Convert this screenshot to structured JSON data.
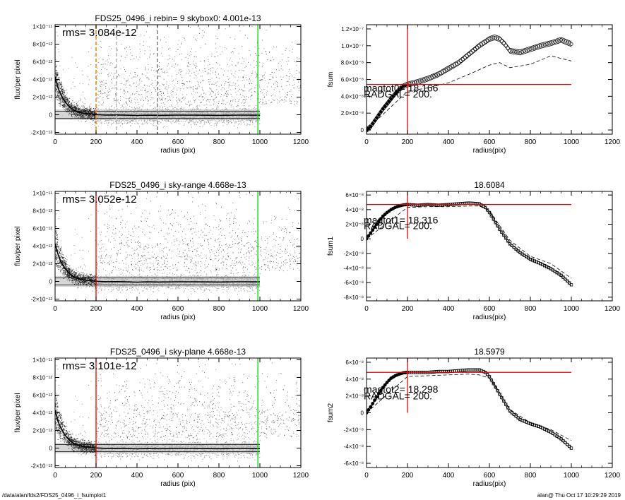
{
  "footer": {
    "path": "/data/alan/fds2/FDS25_0496_i_fsumplot1",
    "stamp": "alan@  Thu Oct 17 10:29:29 2019"
  },
  "chart_data": [
    {
      "type": "scatter",
      "title": "FDS25_0496_i rebin= 9    skybox0:  4.001e-13",
      "annotation": "rms= 3.084e-12",
      "xlabel": "radius (pix)",
      "ylabel": "flux/per pixel",
      "xlim": [
        0,
        1200
      ],
      "ylim": [
        -2.2e-12,
        1.02e-11
      ],
      "xticks": [
        0,
        200,
        400,
        600,
        800,
        1000,
        1200
      ],
      "xtick_labels": [
        "0",
        "200",
        "400",
        "600",
        "800",
        "1000",
        "1200"
      ],
      "yticks": [
        -2e-12,
        0,
        2e-12,
        4e-12,
        6e-12,
        8e-12,
        1e-11
      ],
      "ytick_labels": [
        "-2×10⁻¹²",
        "0",
        "2×10⁻¹²",
        "4×10⁻¹²",
        "6×10⁻¹²",
        "8×10⁻¹²",
        "1×10⁻¹¹"
      ],
      "vlines": [
        {
          "x": 200,
          "color": "#ff8c00",
          "style": "dashed"
        },
        {
          "x": 300,
          "color": "#bbbbbb",
          "style": "dashed"
        },
        {
          "x": 500,
          "color": "#888888",
          "style": "dashed"
        },
        {
          "x": 990,
          "color": "#00dd00",
          "style": "solid"
        }
      ],
      "hlines": [
        {
          "y": 4e-13
        },
        {
          "y": -4e-13
        }
      ],
      "profile": {
        "x": [
          0,
          10,
          20,
          30,
          40,
          50,
          60,
          70,
          80,
          90,
          100,
          120,
          140,
          160,
          180,
          200,
          250,
          300,
          350,
          400,
          450,
          500,
          600,
          700,
          800,
          900,
          1000
        ],
        "y": [
          4.3e-12,
          3.4e-12,
          2.7e-12,
          2.2e-12,
          1.8e-12,
          1.45e-12,
          1.15e-12,
          9e-13,
          7e-13,
          5.5e-13,
          4.3e-13,
          2.8e-13,
          1.8e-13,
          1.2e-13,
          8e-14,
          2e-14,
          -3e-14,
          -2e-14,
          -5e-14,
          -8e-14,
          -5e-14,
          -6e-14,
          -4e-14,
          -5e-14,
          -6e-14,
          -4e-14,
          -5e-14
        ]
      }
    },
    {
      "type": "scatter",
      "title": "",
      "annotation": "",
      "xlabel": "radius(pix)",
      "ylabel": "fsum",
      "xlim": [
        0,
        1200
      ],
      "ylim": [
        -5e-09,
        1.25e-07
      ],
      "xticks": [
        0,
        200,
        400,
        600,
        800,
        1000,
        1200
      ],
      "xtick_labels": [
        "0",
        "200",
        "400",
        "600",
        "800",
        "1000",
        "1200"
      ],
      "yticks": [
        0,
        2e-08,
        4e-08,
        6e-08,
        8e-08,
        1e-07,
        1.2e-07
      ],
      "ytick_labels": [
        "0",
        "2.0×10⁻⁸",
        "4.0×10⁻⁸",
        "6.0×10⁻⁸",
        "8.0×10⁻⁸",
        "1.0×10⁻⁷",
        "1.2×10⁻⁷"
      ],
      "crosshair": {
        "x": 200,
        "y": 5.4e-08,
        "color": "#ee0000"
      },
      "texts": [
        "magtot0=  18.166",
        "RADGAL=     200."
      ],
      "text_pos": [
        5e-08,
        4.3e-08
      ],
      "curve": {
        "x": [
          0,
          20,
          40,
          60,
          80,
          100,
          120,
          140,
          160,
          180,
          200,
          250,
          300,
          350,
          400,
          450,
          500,
          550,
          600,
          625,
          650,
          675,
          700,
          750,
          800,
          850,
          900,
          950,
          1000
        ],
        "y": [
          0,
          4e-09,
          1.1e-08,
          1.8e-08,
          2.5e-08,
          3.1e-08,
          3.7e-08,
          4.3e-08,
          4.8e-08,
          5.2e-08,
          5.4e-08,
          5.7e-08,
          6.1e-08,
          6.6e-08,
          7.3e-08,
          8e-08,
          9e-08,
          1e-07,
          1.08e-07,
          1.1e-07,
          1.08e-07,
          1.02e-07,
          9.4e-08,
          9.2e-08,
          9.6e-08,
          1e-07,
          1.03e-07,
          1.07e-07,
          1.02e-07
        ]
      },
      "band_upper_offset": 3e-09,
      "band_lower_offset": -3e-09,
      "dashed": {
        "x": [
          0,
          200,
          300,
          400,
          500,
          600,
          650,
          700,
          800,
          900,
          1000
        ],
        "y": [
          0,
          4.6e-08,
          5e-08,
          5.6e-08,
          6.6e-08,
          7.7e-08,
          8e-08,
          7.4e-08,
          7.8e-08,
          8.8e-08,
          8.2e-08
        ]
      }
    },
    {
      "type": "scatter",
      "title": "FDS25_0496_i sky-range  4.668e-13",
      "annotation": "rms= 3.052e-12",
      "xlabel": "radius (pix)",
      "ylabel": "flux/per pixel",
      "xlim": [
        0,
        1200
      ],
      "ylim": [
        -2.2e-12,
        1.02e-11
      ],
      "xticks": [
        0,
        200,
        400,
        600,
        800,
        1000,
        1200
      ],
      "xtick_labels": [
        "0",
        "200",
        "400",
        "600",
        "800",
        "1000",
        "1200"
      ],
      "yticks": [
        -2e-12,
        0,
        2e-12,
        4e-12,
        6e-12,
        8e-12,
        1e-11
      ],
      "ytick_labels": [
        "-2×10⁻¹²",
        "0",
        "2×10⁻¹²",
        "4×10⁻¹²",
        "6×10⁻¹²",
        "8×10⁻¹²",
        "1×10⁻¹¹"
      ],
      "vlines": [
        {
          "x": 200,
          "color": "#ee0000",
          "style": "solid"
        },
        {
          "x": 990,
          "color": "#00dd00",
          "style": "solid"
        }
      ],
      "hlines": [
        {
          "y": 4e-13
        },
        {
          "y": -4e-13
        }
      ],
      "profile": {
        "x": [
          0,
          10,
          20,
          30,
          40,
          50,
          60,
          70,
          80,
          90,
          100,
          120,
          140,
          160,
          180,
          200,
          250,
          300,
          350,
          400,
          450,
          500,
          600,
          700,
          800,
          900,
          1000
        ],
        "y": [
          4.3e-12,
          3.4e-12,
          2.7e-12,
          2.2e-12,
          1.8e-12,
          1.45e-12,
          1.15e-12,
          9e-13,
          7e-13,
          5.5e-13,
          4.3e-13,
          2.8e-13,
          1.8e-13,
          1.2e-13,
          8e-14,
          2e-14,
          -3e-14,
          -2e-14,
          -5e-14,
          -8e-14,
          -5e-14,
          -6e-14,
          -4e-14,
          -5e-14,
          -6e-14,
          -4e-14,
          -5e-14
        ]
      }
    },
    {
      "type": "scatter",
      "title": "18.6084",
      "annotation": "",
      "xlabel": "radius(pix)",
      "ylabel": "fsum1",
      "xlim": [
        0,
        1200
      ],
      "ylim": [
        -8.5e-08,
        6.5e-08
      ],
      "xticks": [
        0,
        200,
        400,
        600,
        800,
        1000,
        1200
      ],
      "xtick_labels": [
        "0",
        "200",
        "400",
        "600",
        "800",
        "1000",
        "1200"
      ],
      "yticks": [
        -8e-08,
        -6e-08,
        -4e-08,
        -2e-08,
        0,
        2e-08,
        4e-08,
        6e-08
      ],
      "ytick_labels": [
        "-8×10⁻⁸",
        "-6×10⁻⁸",
        "-4×10⁻⁸",
        "-2×10⁻⁸",
        "0",
        "2×10⁻⁸",
        "4×10⁻⁸",
        "6×10⁻⁸"
      ],
      "crosshair": {
        "x": 200,
        "y": 4.7e-08,
        "color": "#ee0000"
      },
      "texts": [
        "magtot1=  18.316",
        "RADGAL=     200."
      ],
      "text_pos": [
        2.6e-08,
        1.8e-08
      ],
      "curve": {
        "x": [
          0,
          20,
          40,
          60,
          80,
          100,
          120,
          140,
          160,
          180,
          200,
          250,
          300,
          350,
          400,
          450,
          500,
          550,
          580,
          600,
          650,
          700,
          750,
          800,
          850,
          900,
          950,
          1000
        ],
        "y": [
          0,
          8e-09,
          1.6e-08,
          2.4e-08,
          3.1e-08,
          3.6e-08,
          4e-08,
          4.3e-08,
          4.5e-08,
          4.65e-08,
          4.7e-08,
          4.6e-08,
          4.7e-08,
          4.6e-08,
          4.7e-08,
          4.8e-08,
          4.9e-08,
          4.8e-08,
          4.3e-08,
          3.6e-08,
          1.3e-08,
          -7e-09,
          -1.9e-08,
          -2.8e-08,
          -3.4e-08,
          -4.1e-08,
          -5e-08,
          -6.3e-08
        ]
      },
      "band_upper_offset": 1.5e-09,
      "band_lower_offset": -1.5e-09,
      "dashed": {
        "x": [
          0,
          200,
          300,
          400,
          500,
          550,
          600,
          650,
          700,
          800,
          900,
          1000
        ],
        "y": [
          0,
          4.3e-08,
          4.4e-08,
          4.4e-08,
          4.5e-08,
          4.5e-08,
          3.9e-08,
          1.8e-08,
          -2e-09,
          -2.4e-08,
          -3.4e-08,
          -5.4e-08
        ]
      }
    },
    {
      "type": "scatter",
      "title": "FDS25_0496_i sky-plane  4.668e-13",
      "annotation": "rms= 3.101e-12",
      "xlabel": "radius (pix)",
      "ylabel": "flux/per pixel",
      "xlim": [
        0,
        1200
      ],
      "ylim": [
        -2.2e-12,
        1.02e-11
      ],
      "xticks": [
        0,
        200,
        400,
        600,
        800,
        1000,
        1200
      ],
      "xtick_labels": [
        "0",
        "200",
        "400",
        "600",
        "800",
        "1000",
        "1200"
      ],
      "yticks": [
        -2e-12,
        0,
        2e-12,
        4e-12,
        6e-12,
        8e-12,
        1e-11
      ],
      "ytick_labels": [
        "-2×10⁻¹²",
        "0",
        "2×10⁻¹²",
        "4×10⁻¹²",
        "6×10⁻¹²",
        "8×10⁻¹²",
        "1×10⁻¹¹"
      ],
      "vlines": [
        {
          "x": 200,
          "color": "#ee0000",
          "style": "solid"
        },
        {
          "x": 990,
          "color": "#00dd00",
          "style": "solid"
        }
      ],
      "hlines": [
        {
          "y": 4e-13
        },
        {
          "y": -4e-13
        }
      ],
      "profile": {
        "x": [
          0,
          10,
          20,
          30,
          40,
          50,
          60,
          70,
          80,
          90,
          100,
          120,
          140,
          160,
          180,
          200,
          250,
          300,
          350,
          400,
          450,
          500,
          600,
          700,
          800,
          900,
          1000
        ],
        "y": [
          4.3e-12,
          3.4e-12,
          2.7e-12,
          2.2e-12,
          1.8e-12,
          1.45e-12,
          1.15e-12,
          9e-13,
          7e-13,
          5.5e-13,
          4.3e-13,
          2.8e-13,
          1.8e-13,
          1.2e-13,
          8e-14,
          2e-14,
          -3e-14,
          -2e-14,
          -5e-14,
          -8e-14,
          -5e-14,
          -6e-14,
          -4e-14,
          -5e-14,
          -6e-14,
          -4e-14,
          -5e-14
        ]
      }
    },
    {
      "type": "scatter",
      "title": "18.5979",
      "annotation": "",
      "xlabel": "radius(pix)",
      "ylabel": "fsum2",
      "xlim": [
        0,
        1200
      ],
      "ylim": [
        -6.5e-08,
        6.5e-08
      ],
      "xticks": [
        0,
        200,
        400,
        600,
        800,
        1000,
        1200
      ],
      "xtick_labels": [
        "0",
        "200",
        "400",
        "600",
        "800",
        "1000",
        "1200"
      ],
      "yticks": [
        -6e-08,
        -4e-08,
        -2e-08,
        0,
        2e-08,
        4e-08,
        6e-08
      ],
      "ytick_labels": [
        "-6×10⁻⁸",
        "-4×10⁻⁸",
        "-2×10⁻⁸",
        "0",
        "2×10⁻⁸",
        "4×10⁻⁸",
        "6×10⁻⁸"
      ],
      "crosshair": {
        "x": 200,
        "y": 4.8e-08,
        "color": "#ee0000"
      },
      "texts": [
        "magtot2=  18.298",
        "RADGAL=     200."
      ],
      "text_pos": [
        2.8e-08,
        2e-08
      ],
      "curve": {
        "x": [
          0,
          20,
          40,
          60,
          80,
          100,
          120,
          140,
          160,
          180,
          200,
          250,
          300,
          350,
          400,
          450,
          500,
          550,
          580,
          600,
          650,
          700,
          750,
          800,
          850,
          900,
          950,
          1000
        ],
        "y": [
          0,
          7e-09,
          1.5e-08,
          2.3e-08,
          3e-08,
          3.6e-08,
          4.1e-08,
          4.4e-08,
          4.6e-08,
          4.75e-08,
          4.8e-08,
          4.8e-08,
          4.8e-08,
          4.9e-08,
          4.9e-08,
          5e-08,
          5.1e-08,
          5.1e-08,
          4.8e-08,
          4.3e-08,
          2.2e-08,
          2e-09,
          -8e-09,
          -1.3e-08,
          -1.7e-08,
          -2.3e-08,
          -3.1e-08,
          -4.2e-08
        ]
      },
      "band_upper_offset": 1.5e-09,
      "band_lower_offset": -1.5e-09,
      "dashed": {
        "x": [
          0,
          200,
          300,
          400,
          500,
          550,
          600,
          650,
          700,
          800,
          900,
          1000
        ],
        "y": [
          0,
          4.3e-08,
          4.4e-08,
          4.5e-08,
          4.6e-08,
          4.5e-08,
          4.1e-08,
          2.4e-08,
          4e-09,
          -1.2e-08,
          -2e-08,
          -3.3e-08
        ]
      }
    }
  ]
}
